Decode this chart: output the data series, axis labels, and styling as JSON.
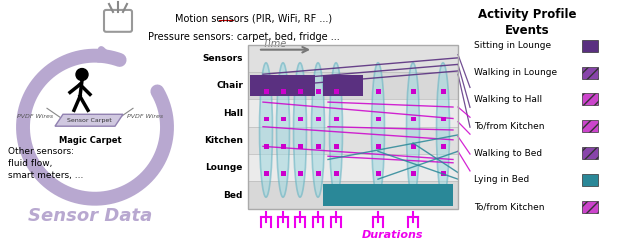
{
  "bg_color": "#ffffff",
  "arrow_color": "#b8a8d0",
  "chair_block_color": "#5a3080",
  "bed_block_color": "#2a8898",
  "ellipse_fill": "#a0d8e0",
  "ellipse_edge": "#60b0c0",
  "magenta": "#cc00cc",
  "purple_dark": "#5a3080",
  "purple_mid": "#8844aa",
  "teal": "#2a8898",
  "duration_color": "#ee00ee",
  "time_arrow_color": "#777777",
  "sensor_rows": [
    "Sensors",
    "Chair",
    "Hall",
    "Kitchen",
    "Lounge",
    "Bed"
  ],
  "row_bg_colors": [
    "#e0e0e0",
    "#d8d8d8",
    "#ebebeb",
    "#e0e0e0",
    "#ebebeb",
    "#d8d8d8"
  ],
  "legend_items": [
    {
      "label": "Sitting in Lounge",
      "color": "#5a3080",
      "hatch": ""
    },
    {
      "label": "Walking in Lounge",
      "color": "#8844aa",
      "hatch": "///"
    },
    {
      "label": "Walking to Hall",
      "color": "#cc44cc",
      "hatch": "///"
    },
    {
      "label": "To/from Kitchen",
      "color": "#cc44cc",
      "hatch": "///"
    },
    {
      "label": "Walking to Bed",
      "color": "#8844aa",
      "hatch": "///"
    },
    {
      "label": "Lying in Bed",
      "color": "#2a8898",
      "hatch": ""
    },
    {
      "label": "To/from Kitchen",
      "color": "#cc44cc",
      "hatch": "///"
    }
  ]
}
